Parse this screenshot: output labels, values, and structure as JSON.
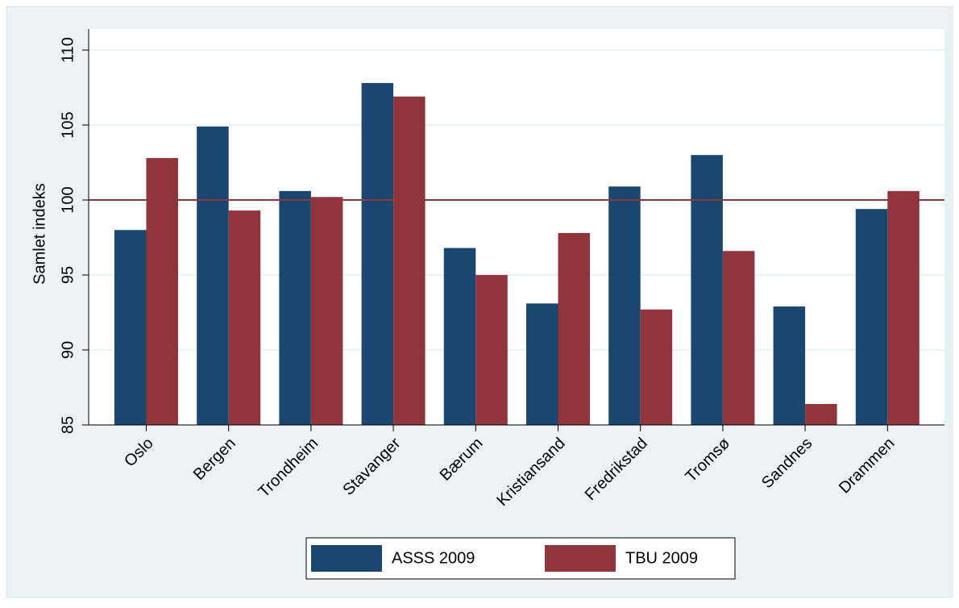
{
  "chart_data": {
    "type": "bar",
    "y_label": "Samlet indeks",
    "categories": [
      "Oslo",
      "Bergen",
      "Trondheim",
      "Stavanger",
      "Bærum",
      "Kristiansand",
      "Fredrikstad",
      "Tromsø",
      "Sandnes",
      "Drammen"
    ],
    "series": [
      {
        "name": "ASSS 2009",
        "color": "#1a476f",
        "values": [
          98.0,
          104.9,
          100.6,
          107.8,
          96.8,
          93.1,
          100.9,
          103.0,
          92.9,
          99.4
        ]
      },
      {
        "name": "TBU 2009",
        "color": "#90353b",
        "values": [
          102.8,
          99.3,
          100.2,
          106.9,
          95.0,
          97.8,
          92.7,
          96.6,
          86.4,
          100.6
        ]
      }
    ],
    "ylim": [
      85,
      111.4
    ],
    "yticks": [
      85,
      90,
      95,
      100,
      105,
      110
    ],
    "grid": true,
    "reference_line": {
      "value": 100,
      "color": "#90353b"
    },
    "legend": "bottom"
  }
}
